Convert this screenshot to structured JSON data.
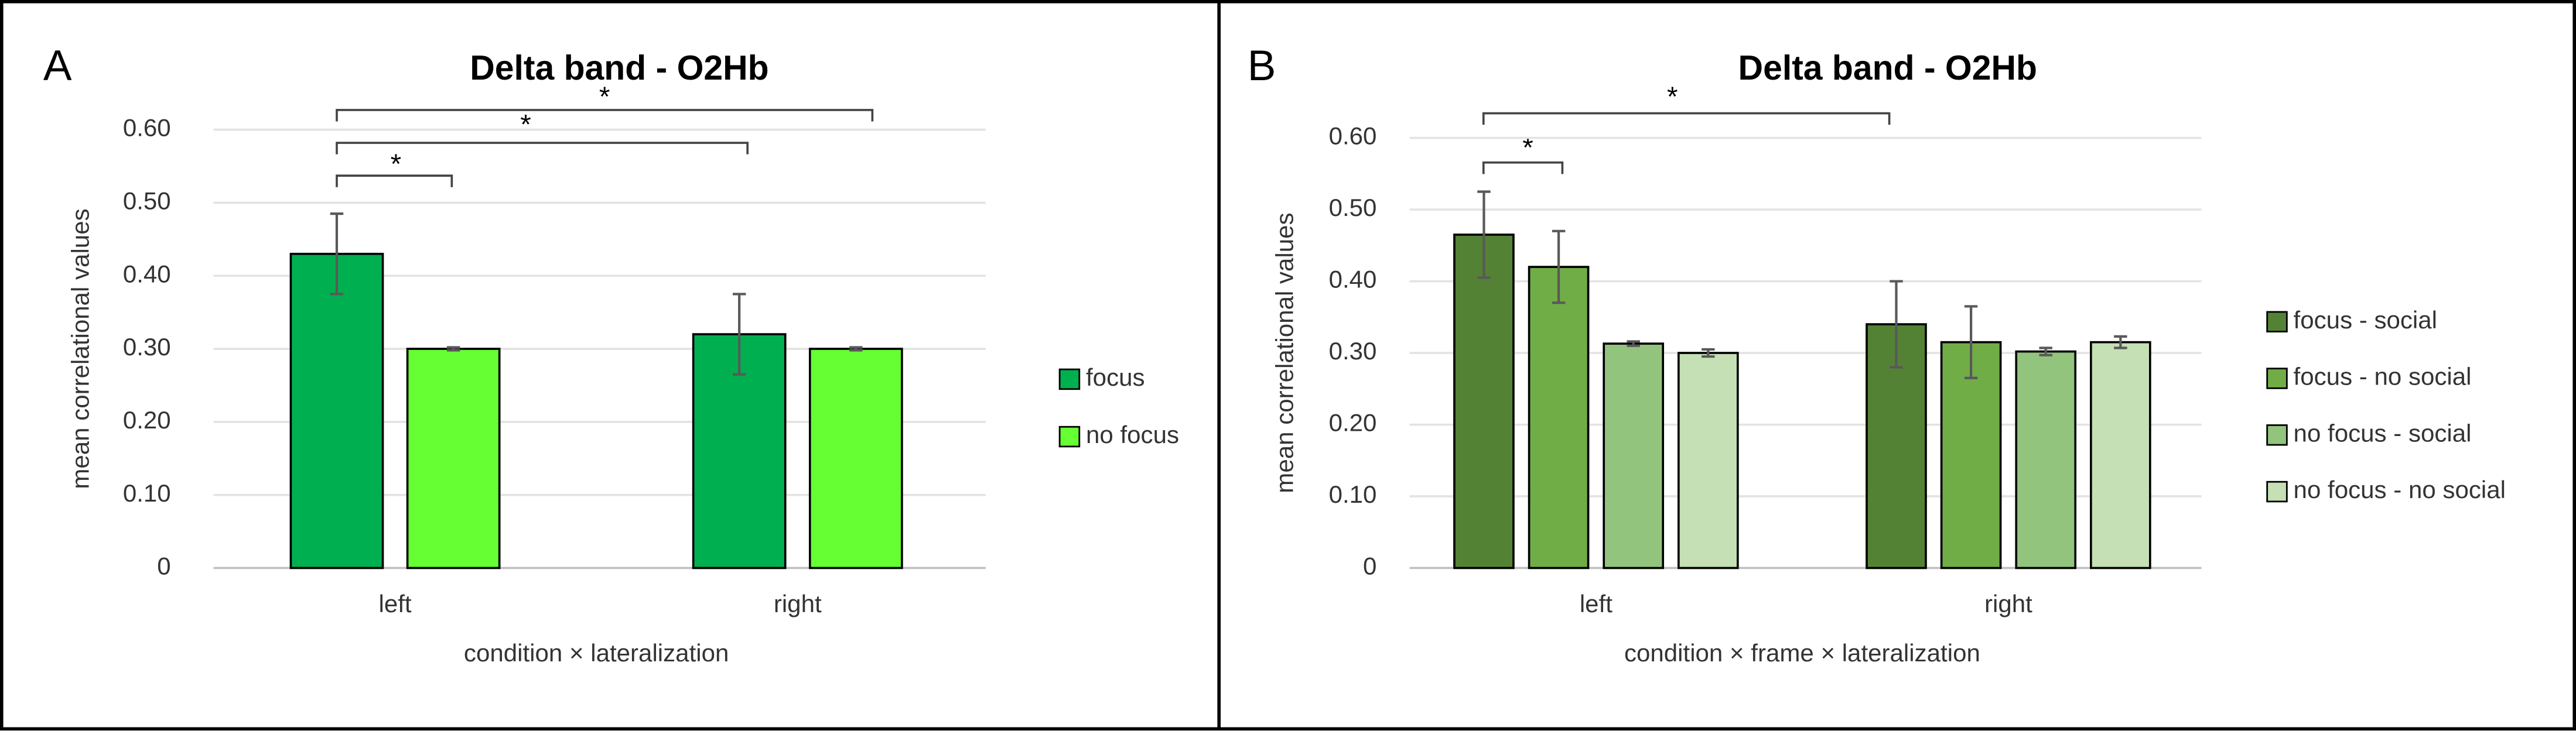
{
  "chart_data": [
    {
      "type": "bar",
      "panel_label": "A",
      "title": "Delta band - O2Hb",
      "x_label": "condition × lateralization",
      "y_label": "mean correlational values",
      "categories": [
        "left",
        "right"
      ],
      "series": [
        {
          "name": "focus",
          "color": "#00b050",
          "values": [
            0.43,
            0.32
          ],
          "errors": [
            0.055,
            0.055
          ]
        },
        {
          "name": "no focus",
          "color": "#66ff33",
          "values": [
            0.3,
            0.3
          ],
          "errors": [
            0.002,
            0.002
          ]
        }
      ],
      "ylim": [
        0,
        0.6
      ],
      "yticks": [
        0,
        {
          "value": 0.1,
          "label": "0.10"
        },
        {
          "value": 0.2,
          "label": "0.20"
        },
        {
          "value": 0.3,
          "label": "0.30"
        },
        {
          "value": 0.4,
          "label": "0.40"
        },
        {
          "value": 0.5,
          "label": "0.50"
        },
        {
          "value": 0.6,
          "label": "0.60"
        }
      ],
      "grid": true,
      "legend": "right",
      "annotations": [
        "*",
        "*",
        "*"
      ]
    },
    {
      "type": "bar",
      "panel_label": "B",
      "title": "Delta band - O2Hb",
      "x_label": "condition × frame × lateralization",
      "y_label": "mean correlational values",
      "categories": [
        "left",
        "right"
      ],
      "series": [
        {
          "name": "focus - social",
          "color": "#548235",
          "values": [
            0.465,
            0.34
          ],
          "errors": [
            0.06,
            0.06
          ]
        },
        {
          "name": "focus - no social",
          "color": "#70ad47",
          "values": [
            0.42,
            0.315
          ],
          "errors": [
            0.05,
            0.05
          ]
        },
        {
          "name": "no focus - social",
          "color": "#93c47d",
          "values": [
            0.313,
            0.302
          ],
          "errors": [
            0.003,
            0.005
          ]
        },
        {
          "name": "no focus - no social",
          "color": "#c5e0b4",
          "values": [
            0.3,
            0.315
          ],
          "errors": [
            0.005,
            0.008
          ]
        }
      ],
      "ylim": [
        0,
        0.6
      ],
      "yticks": [
        0,
        {
          "value": 0.1,
          "label": "0.10"
        },
        {
          "value": 0.2,
          "label": "0.20"
        },
        {
          "value": 0.3,
          "label": "0.30"
        },
        {
          "value": 0.4,
          "label": "0.40"
        },
        {
          "value": 0.5,
          "label": "0.50"
        },
        {
          "value": 0.6,
          "label": "0.60"
        }
      ],
      "grid": true,
      "legend": "right",
      "annotations": [
        "*",
        "*"
      ]
    }
  ]
}
